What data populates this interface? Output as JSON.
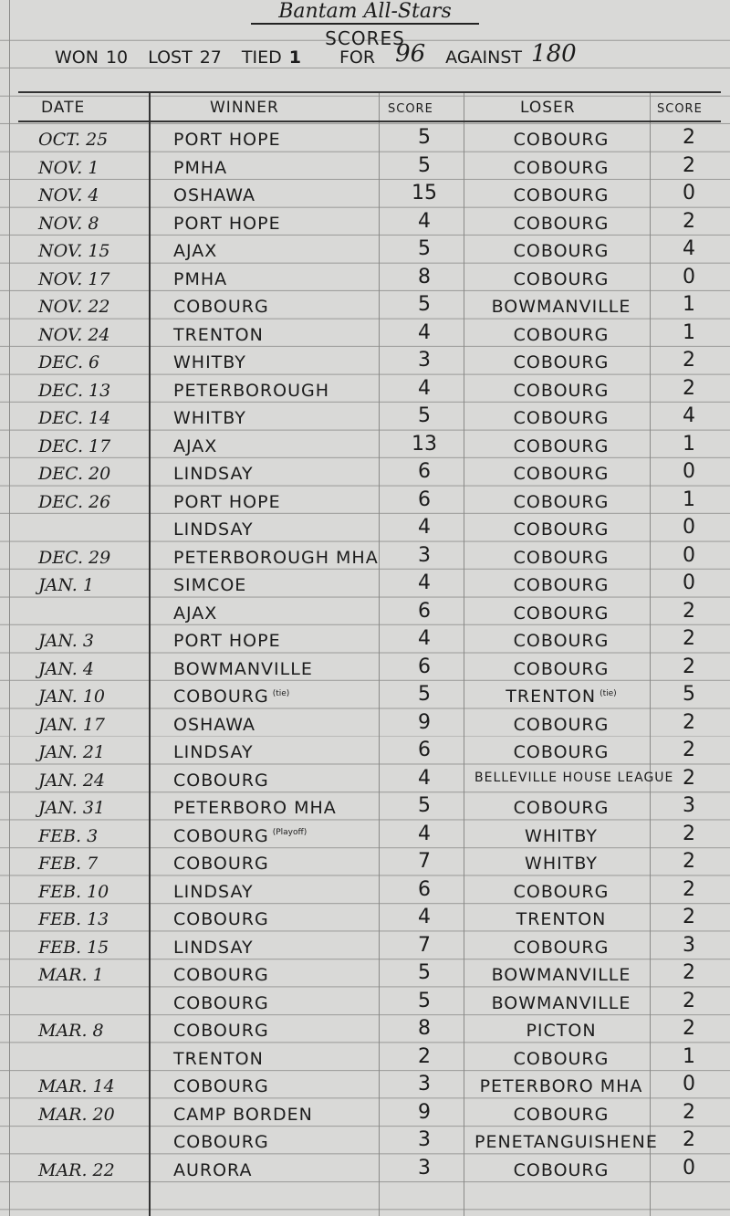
{
  "title": "Bantam All-Stars",
  "subtitle": "SCORES",
  "record": {
    "won_label": "WON",
    "won": "10",
    "lost_label": "LOST",
    "lost": "27",
    "tied_label": "TIED",
    "tied": "1",
    "for_label": "FOR",
    "for": "96",
    "against_label": "AGAINST",
    "against": "180"
  },
  "columns": {
    "date": "DATE",
    "winner": "WINNER",
    "winner_score": "SCORE",
    "loser": "LOSER",
    "loser_score": "SCORE"
  },
  "rows": [
    {
      "date": "OCT. 25",
      "winner": "PORT HOPE",
      "ws": "5",
      "loser": "COBOURG",
      "ls": "2"
    },
    {
      "date": "NOV. 1",
      "winner": "PMHA",
      "ws": "5",
      "loser": "COBOURG",
      "ls": "2"
    },
    {
      "date": "NOV. 4",
      "winner": "OSHAWA",
      "ws": "15",
      "loser": "COBOURG",
      "ls": "0"
    },
    {
      "date": "NOV. 8",
      "winner": "PORT HOPE",
      "ws": "4",
      "loser": "COBOURG",
      "ls": "2"
    },
    {
      "date": "NOV. 15",
      "winner": "AJAX",
      "ws": "5",
      "loser": "COBOURG",
      "ls": "4"
    },
    {
      "date": "NOV. 17",
      "winner": "PMHA",
      "ws": "8",
      "loser": "COBOURG",
      "ls": "0"
    },
    {
      "date": "NOV. 22",
      "winner": "COBOURG",
      "ws": "5",
      "loser": "BOWMANVILLE",
      "ls": "1"
    },
    {
      "date": "NOV. 24",
      "winner": "TRENTON",
      "ws": "4",
      "loser": "COBOURG",
      "ls": "1"
    },
    {
      "date": "DEC. 6",
      "winner": "WHITBY",
      "ws": "3",
      "loser": "COBOURG",
      "ls": "2"
    },
    {
      "date": "DEC. 13",
      "winner": "PETERBOROUGH",
      "ws": "4",
      "loser": "COBOURG",
      "ls": "2"
    },
    {
      "date": "DEC. 14",
      "winner": "WHITBY",
      "ws": "5",
      "loser": "COBOURG",
      "ls": "4"
    },
    {
      "date": "DEC. 17",
      "winner": "AJAX",
      "ws": "13",
      "loser": "COBOURG",
      "ls": "1"
    },
    {
      "date": "DEC. 20",
      "winner": "LINDSAY",
      "ws": "6",
      "loser": "COBOURG",
      "ls": "0"
    },
    {
      "date": "DEC. 26",
      "winner": "PORT HOPE",
      "ws": "6",
      "loser": "COBOURG",
      "ls": "1"
    },
    {
      "date": "",
      "winner": "LINDSAY",
      "ws": "4",
      "loser": "COBOURG",
      "ls": "0"
    },
    {
      "date": "DEC. 29",
      "winner": "PETERBOROUGH MHA",
      "ws": "3",
      "loser": "COBOURG",
      "ls": "0"
    },
    {
      "date": "JAN. 1",
      "winner": "SIMCOE",
      "ws": "4",
      "loser": "COBOURG",
      "ls": "0"
    },
    {
      "date": "",
      "winner": "AJAX",
      "ws": "6",
      "loser": "COBOURG",
      "ls": "2"
    },
    {
      "date": "JAN. 3",
      "winner": "PORT HOPE",
      "ws": "4",
      "loser": "COBOURG",
      "ls": "2"
    },
    {
      "date": "JAN. 4",
      "winner": "BOWMANVILLE",
      "ws": "6",
      "loser": "COBOURG",
      "ls": "2"
    },
    {
      "date": "JAN. 10",
      "winner": "COBOURG",
      "winner_note": "(tie)",
      "ws": "5",
      "loser": "TRENTON",
      "loser_note": "(tie)",
      "ls": "5"
    },
    {
      "date": "JAN. 17",
      "winner": "OSHAWA",
      "ws": "9",
      "loser": "COBOURG",
      "ls": "2"
    },
    {
      "date": "JAN. 21",
      "winner": "LINDSAY",
      "ws": "6",
      "loser": "COBOURG",
      "ls": "2"
    },
    {
      "date": "JAN. 24",
      "winner": "COBOURG",
      "ws": "4",
      "loser": "BELLEVILLE HOUSE LEAGUE",
      "ls": "2"
    },
    {
      "date": "JAN. 31",
      "winner": "PETERBORO MHA",
      "ws": "5",
      "loser": "COBOURG",
      "ls": "3"
    },
    {
      "date": "FEB. 3",
      "winner": "COBOURG",
      "winner_note": "(Playoff)",
      "ws": "4",
      "loser": "WHITBY",
      "ls": "2"
    },
    {
      "date": "FEB. 7",
      "winner": "COBOURG",
      "ws": "7",
      "loser": "WHITBY",
      "ls": "2"
    },
    {
      "date": "FEB. 10",
      "winner": "LINDSAY",
      "ws": "6",
      "loser": "COBOURG",
      "ls": "2"
    },
    {
      "date": "FEB. 13",
      "winner": "COBOURG",
      "ws": "4",
      "loser": "TRENTON",
      "ls": "2"
    },
    {
      "date": "FEB. 15",
      "winner": "LINDSAY",
      "ws": "7",
      "loser": "COBOURG",
      "ls": "3"
    },
    {
      "date": "MAR. 1",
      "winner": "COBOURG",
      "ws": "5",
      "loser": "BOWMANVILLE",
      "ls": "2"
    },
    {
      "date": "",
      "winner": "COBOURG",
      "ws": "5",
      "loser": "BOWMANVILLE",
      "ls": "2"
    },
    {
      "date": "MAR. 8",
      "winner": "COBOURG",
      "ws": "8",
      "loser": "PICTON",
      "ls": "2"
    },
    {
      "date": "",
      "winner": "TRENTON",
      "ws": "2",
      "loser": "COBOURG",
      "ls": "1"
    },
    {
      "date": "MAR. 14",
      "winner": "COBOURG",
      "ws": "3",
      "loser": "PETERBORO MHA",
      "ls": "0"
    },
    {
      "date": "MAR. 20",
      "winner": "CAMP BORDEN",
      "ws": "9",
      "loser": "COBOURG",
      "ls": "2"
    },
    {
      "date": "",
      "winner": "COBOURG",
      "ws": "3",
      "loser": "PENETANGUISHENE",
      "ls": "2"
    },
    {
      "date": "MAR. 22",
      "winner": "AURORA",
      "ws": "3",
      "loser": "COBOURG",
      "ls": "0"
    }
  ]
}
